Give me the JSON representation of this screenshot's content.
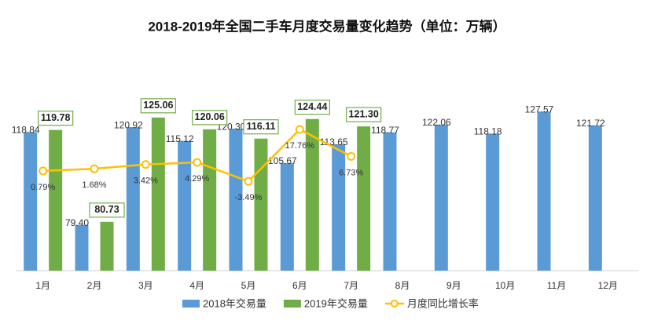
{
  "chart_data": {
    "type": "bar",
    "title": "2018-2019年全国二手车月度交易量变化趋势（单位：万辆）",
    "categories": [
      "1月",
      "2月",
      "3月",
      "4月",
      "5月",
      "6月",
      "7月",
      "8月",
      "9月",
      "10月",
      "11月",
      "12月"
    ],
    "series": [
      {
        "name": "2018年交易量",
        "color": "#5b9bd5",
        "type": "bar",
        "values": [
          118.84,
          79.4,
          120.92,
          115.12,
          120.3,
          105.67,
          113.65,
          118.77,
          122.06,
          118.18,
          127.57,
          121.72
        ],
        "value_labels": [
          "118.84",
          "79.40",
          "120.92",
          "115.12",
          "120.30",
          "105.67",
          "113.65",
          "118.77",
          "122.06",
          "118.18",
          "127.57",
          "121.72"
        ]
      },
      {
        "name": "2019年交易量",
        "color": "#70ad47",
        "type": "bar",
        "values": [
          119.78,
          80.73,
          125.06,
          120.06,
          116.11,
          124.44,
          121.3,
          null,
          null,
          null,
          null,
          null
        ],
        "value_labels": [
          "119.78",
          "80.73",
          "125.06",
          "120.06",
          "116.11",
          "124.44",
          "121.30",
          null,
          null,
          null,
          null,
          null
        ]
      },
      {
        "name": "月度同比增长率",
        "color": "#ffc000",
        "type": "line",
        "axis": "y2",
        "values": [
          0.79,
          1.68,
          3.42,
          4.29,
          -3.49,
          17.76,
          6.73,
          null,
          null,
          null,
          null,
          null
        ],
        "value_labels": [
          "0.79%",
          "1.68%",
          "3.42%",
          "4.29%",
          "-3.49%",
          "17.76%",
          "6.73%",
          null,
          null,
          null,
          null,
          null
        ]
      }
    ],
    "ylim": [
      60,
      140
    ],
    "y2lim": [
      -40,
      37
    ],
    "legend": "bottom"
  }
}
